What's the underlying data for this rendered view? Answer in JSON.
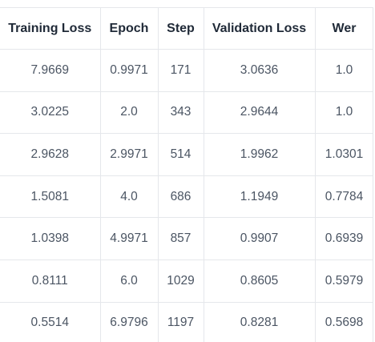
{
  "results_table": {
    "columns": [
      "Training Loss",
      "Epoch",
      "Step",
      "Validation Loss",
      "Wer"
    ],
    "rows": [
      [
        "7.9669",
        "0.9971",
        "171",
        "3.0636",
        "1.0"
      ],
      [
        "3.0225",
        "2.0",
        "343",
        "2.9644",
        "1.0"
      ],
      [
        "2.9628",
        "2.9971",
        "514",
        "1.9962",
        "1.0301"
      ],
      [
        "1.5081",
        "4.0",
        "686",
        "1.1949",
        "0.7784"
      ],
      [
        "1.0398",
        "4.9971",
        "857",
        "0.9907",
        "0.6939"
      ],
      [
        "0.8111",
        "6.0",
        "1029",
        "0.8605",
        "0.5979"
      ],
      [
        "0.5514",
        "6.9796",
        "1197",
        "0.8281",
        "0.5698"
      ]
    ]
  }
}
